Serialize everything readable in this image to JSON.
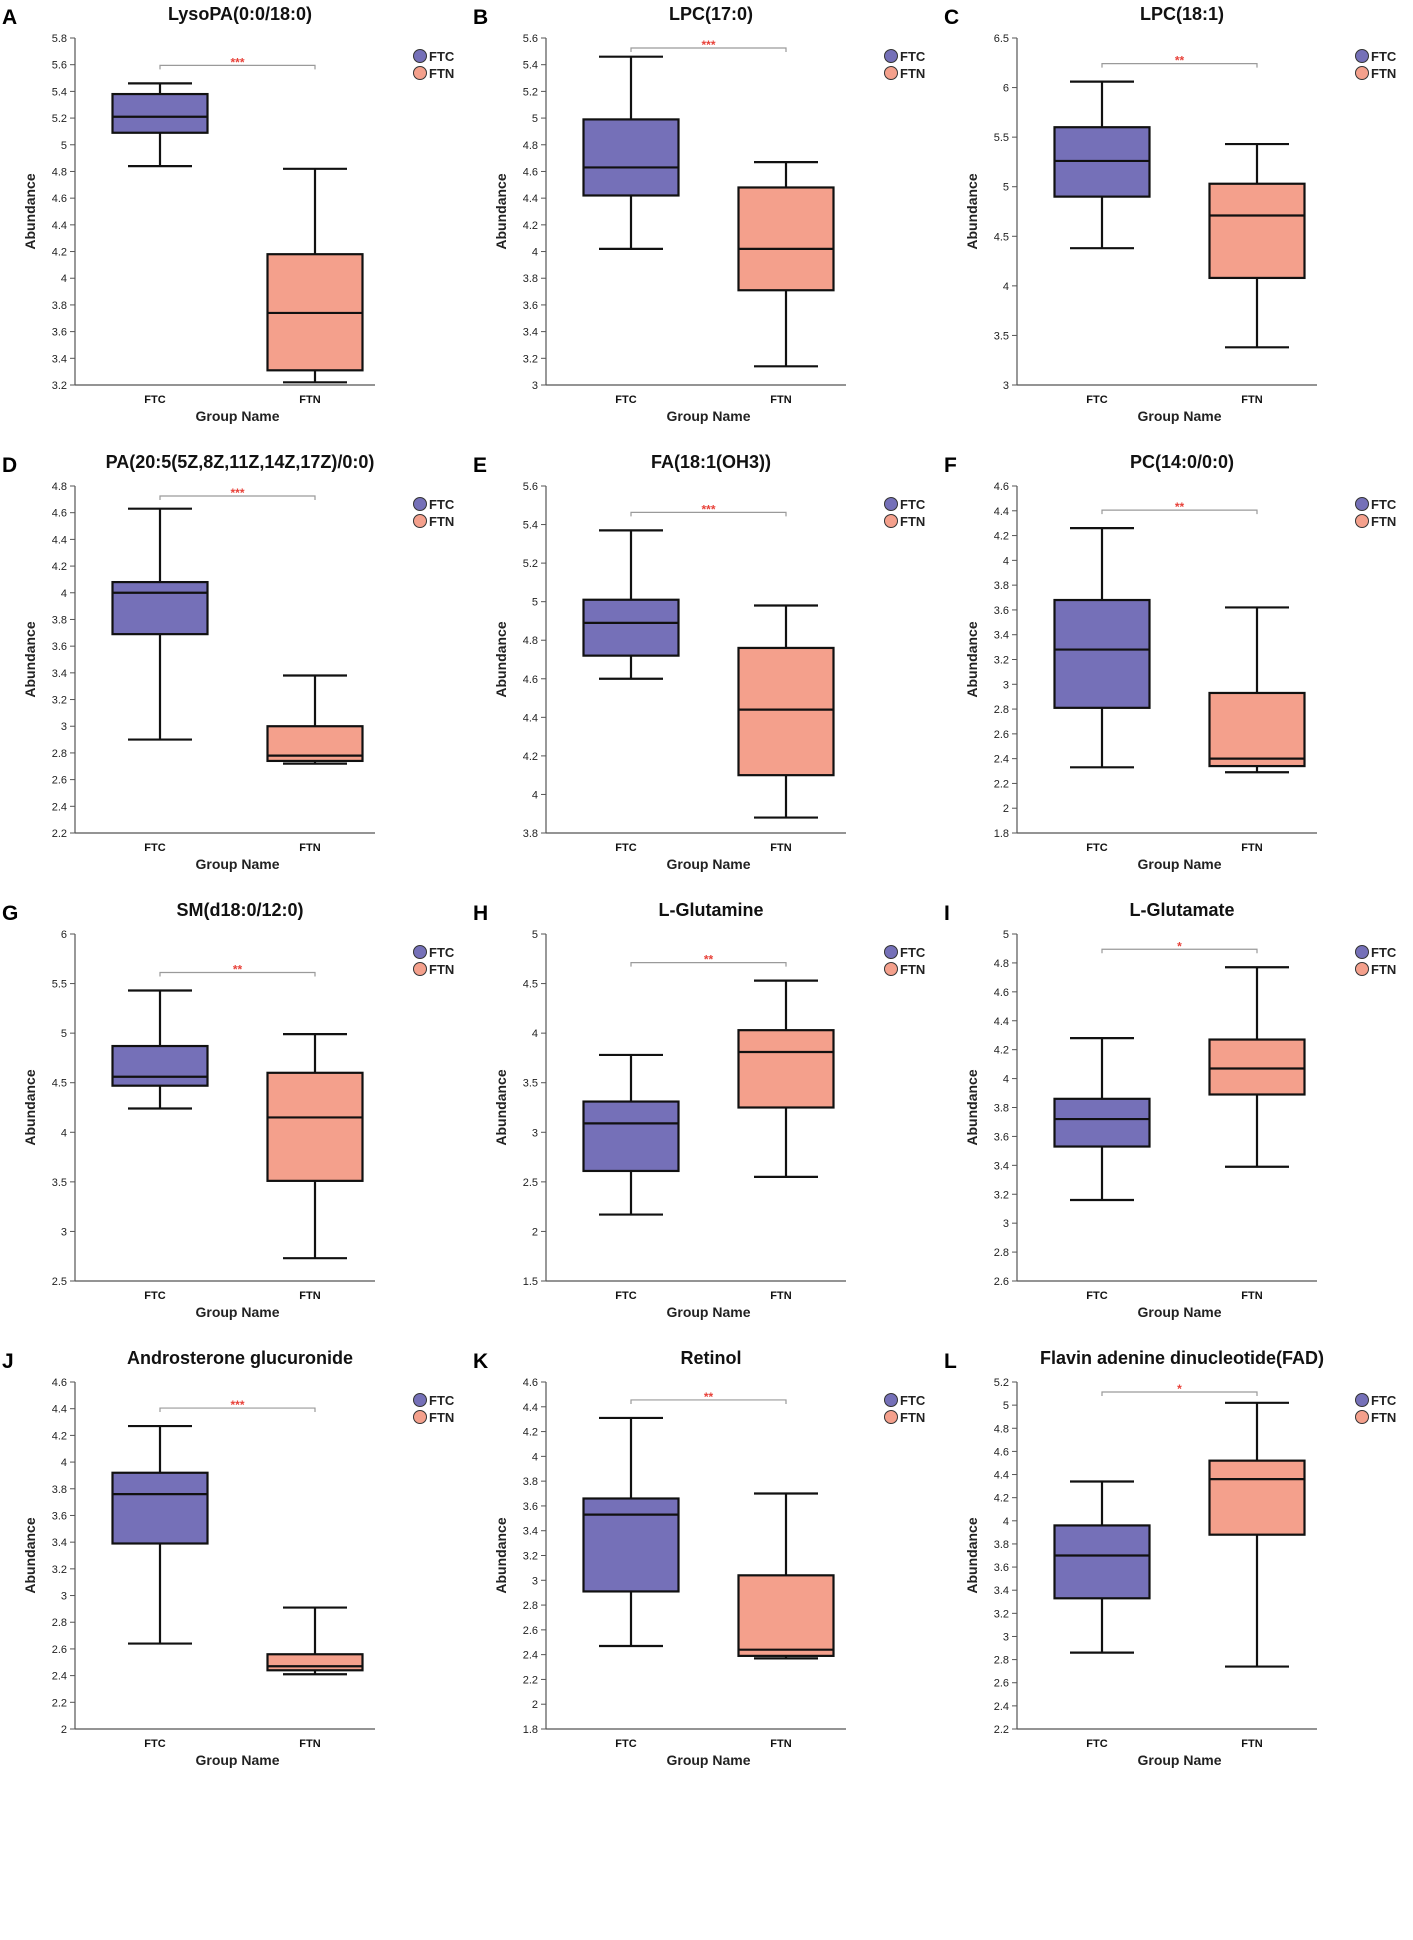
{
  "chart_data": [
    {
      "panel": "A",
      "type": "box",
      "title": "LysoPA(0:0/18:0)",
      "xlabel": "Group Name",
      "ylabel": "Abundance",
      "ylim": [
        3.2,
        5.8
      ],
      "yticks": [
        "3.2",
        "3.4",
        "3.6",
        "3.8",
        "4",
        "4.2",
        "4.4",
        "4.6",
        "4.8",
        "5",
        "5.2",
        "5.4",
        "5.6",
        "5.8"
      ],
      "categories": [
        "FTC",
        "FTN"
      ],
      "boxes": [
        {
          "group": "FTC",
          "min": 4.84,
          "q1": 5.09,
          "median": 5.21,
          "q3": 5.38,
          "max": 5.46
        },
        {
          "group": "FTN",
          "min": 3.22,
          "q1": 3.31,
          "median": 3.74,
          "q3": 4.18,
          "max": 4.82
        }
      ],
      "significance": "***"
    },
    {
      "panel": "B",
      "type": "box",
      "title": "LPC(17:0)",
      "xlabel": "Group Name",
      "ylabel": "Abundance",
      "ylim": [
        3,
        5.6
      ],
      "yticks": [
        "3",
        "3.2",
        "3.4",
        "3.6",
        "3.8",
        "4",
        "4.2",
        "4.4",
        "4.6",
        "4.8",
        "5",
        "5.2",
        "5.4",
        "5.6"
      ],
      "categories": [
        "FTC",
        "FTN"
      ],
      "boxes": [
        {
          "group": "FTC",
          "min": 4.02,
          "q1": 4.42,
          "median": 4.63,
          "q3": 4.99,
          "max": 5.46
        },
        {
          "group": "FTN",
          "min": 3.14,
          "q1": 3.71,
          "median": 4.02,
          "q3": 4.48,
          "max": 4.67
        }
      ],
      "significance": "***"
    },
    {
      "panel": "C",
      "type": "box",
      "title": "LPC(18:1)",
      "xlabel": "Group Name",
      "ylabel": "Abundance",
      "ylim": [
        3,
        6.5
      ],
      "yticks": [
        "3",
        "3.5",
        "4",
        "4.5",
        "5",
        "5.5",
        "6",
        "6.5"
      ],
      "categories": [
        "FTC",
        "FTN"
      ],
      "boxes": [
        {
          "group": "FTC",
          "min": 4.38,
          "q1": 4.9,
          "median": 5.26,
          "q3": 5.6,
          "max": 6.06
        },
        {
          "group": "FTN",
          "min": 3.38,
          "q1": 4.08,
          "median": 4.71,
          "q3": 5.03,
          "max": 5.43
        }
      ],
      "significance": "**"
    },
    {
      "panel": "D",
      "type": "box",
      "title": "PA(20:5(5Z,8Z,11Z,14Z,17Z)/0:0)",
      "xlabel": "Group Name",
      "ylabel": "Abundance",
      "ylim": [
        2.2,
        4.8
      ],
      "yticks": [
        "2.2",
        "2.4",
        "2.6",
        "2.8",
        "3",
        "3.2",
        "3.4",
        "3.6",
        "3.8",
        "4",
        "4.2",
        "4.4",
        "4.6",
        "4.8"
      ],
      "categories": [
        "FTC",
        "FTN"
      ],
      "boxes": [
        {
          "group": "FTC",
          "min": 2.9,
          "q1": 3.69,
          "median": 4.0,
          "q3": 4.08,
          "max": 4.63
        },
        {
          "group": "FTN",
          "min": 2.72,
          "q1": 2.74,
          "median": 2.78,
          "q3": 3.0,
          "max": 3.38
        }
      ],
      "significance": "***"
    },
    {
      "panel": "E",
      "type": "box",
      "title": "FA(18:1(OH3))",
      "xlabel": "Group Name",
      "ylabel": "Abundance",
      "ylim": [
        3.8,
        5.6
      ],
      "yticks": [
        "3.8",
        "4",
        "4.2",
        "4.4",
        "4.6",
        "4.8",
        "5",
        "5.2",
        "5.4",
        "5.6"
      ],
      "categories": [
        "FTC",
        "FTN"
      ],
      "boxes": [
        {
          "group": "FTC",
          "min": 4.6,
          "q1": 4.72,
          "median": 4.89,
          "q3": 5.01,
          "max": 5.37
        },
        {
          "group": "FTN",
          "min": 3.88,
          "q1": 4.1,
          "median": 4.44,
          "q3": 4.76,
          "max": 4.98
        }
      ],
      "significance": "***"
    },
    {
      "panel": "F",
      "type": "box",
      "title": "PC(14:0/0:0)",
      "xlabel": "Group Name",
      "ylabel": "Abundance",
      "ylim": [
        1.8,
        4.6
      ],
      "yticks": [
        "1.8",
        "2",
        "2.2",
        "2.4",
        "2.6",
        "2.8",
        "3",
        "3.2",
        "3.4",
        "3.6",
        "3.8",
        "4",
        "4.2",
        "4.4",
        "4.6"
      ],
      "categories": [
        "FTC",
        "FTN"
      ],
      "boxes": [
        {
          "group": "FTC",
          "min": 2.33,
          "q1": 2.81,
          "median": 3.28,
          "q3": 3.68,
          "max": 4.26
        },
        {
          "group": "FTN",
          "min": 2.29,
          "q1": 2.34,
          "median": 2.4,
          "q3": 2.93,
          "max": 3.62
        }
      ],
      "significance": "**"
    },
    {
      "panel": "G",
      "type": "box",
      "title": "SM(d18:0/12:0)",
      "xlabel": "Group Name",
      "ylabel": "Abundance",
      "ylim": [
        2.5,
        6
      ],
      "yticks": [
        "2.5",
        "3",
        "3.5",
        "4",
        "4.5",
        "5",
        "5.5",
        "6"
      ],
      "categories": [
        "FTC",
        "FTN"
      ],
      "boxes": [
        {
          "group": "FTC",
          "min": 4.24,
          "q1": 4.47,
          "median": 4.56,
          "q3": 4.87,
          "max": 5.43
        },
        {
          "group": "FTN",
          "min": 2.73,
          "q1": 3.51,
          "median": 4.15,
          "q3": 4.6,
          "max": 4.99
        }
      ],
      "significance": "**"
    },
    {
      "panel": "H",
      "type": "box",
      "title": "L-Glutamine",
      "xlabel": "Group Name",
      "ylabel": "Abundance",
      "ylim": [
        1.5,
        5
      ],
      "yticks": [
        "1.5",
        "2",
        "2.5",
        "3",
        "3.5",
        "4",
        "4.5",
        "5"
      ],
      "categories": [
        "FTC",
        "FTN"
      ],
      "boxes": [
        {
          "group": "FTC",
          "min": 2.17,
          "q1": 2.61,
          "median": 3.09,
          "q3": 3.31,
          "max": 3.78
        },
        {
          "group": "FTN",
          "min": 2.55,
          "q1": 3.25,
          "median": 3.81,
          "q3": 4.03,
          "max": 4.53
        }
      ],
      "significance": "**"
    },
    {
      "panel": "I",
      "type": "box",
      "title": "L-Glutamate",
      "xlabel": "Group Name",
      "ylabel": "Abundance",
      "ylim": [
        2.6,
        5
      ],
      "yticks": [
        "2.6",
        "2.8",
        "3",
        "3.2",
        "3.4",
        "3.6",
        "3.8",
        "4",
        "4.2",
        "4.4",
        "4.6",
        "4.8",
        "5"
      ],
      "categories": [
        "FTC",
        "FTN"
      ],
      "boxes": [
        {
          "group": "FTC",
          "min": 3.16,
          "q1": 3.53,
          "median": 3.72,
          "q3": 3.86,
          "max": 4.28
        },
        {
          "group": "FTN",
          "min": 3.39,
          "q1": 3.89,
          "median": 4.07,
          "q3": 4.27,
          "max": 4.77
        }
      ],
      "significance": "*"
    },
    {
      "panel": "J",
      "type": "box",
      "title": "Androsterone glucuronide",
      "xlabel": "Group Name",
      "ylabel": "Abundance",
      "ylim": [
        2,
        4.6
      ],
      "yticks": [
        "2",
        "2.2",
        "2.4",
        "2.6",
        "2.8",
        "3",
        "3.2",
        "3.4",
        "3.6",
        "3.8",
        "4",
        "4.2",
        "4.4",
        "4.6"
      ],
      "categories": [
        "FTC",
        "FTN"
      ],
      "boxes": [
        {
          "group": "FTC",
          "min": 2.64,
          "q1": 3.39,
          "median": 3.76,
          "q3": 3.92,
          "max": 4.27
        },
        {
          "group": "FTN",
          "min": 2.41,
          "q1": 2.44,
          "median": 2.47,
          "q3": 2.56,
          "max": 2.91
        }
      ],
      "significance": "***"
    },
    {
      "panel": "K",
      "type": "box",
      "title": "Retinol",
      "xlabel": "Group Name",
      "ylabel": "Abundance",
      "ylim": [
        1.8,
        4.6
      ],
      "yticks": [
        "1.8",
        "2",
        "2.2",
        "2.4",
        "2.6",
        "2.8",
        "3",
        "3.2",
        "3.4",
        "3.6",
        "3.8",
        "4",
        "4.2",
        "4.4",
        "4.6"
      ],
      "categories": [
        "FTC",
        "FTN"
      ],
      "boxes": [
        {
          "group": "FTC",
          "min": 2.47,
          "q1": 2.91,
          "median": 3.53,
          "q3": 3.66,
          "max": 4.31
        },
        {
          "group": "FTN",
          "min": 2.37,
          "q1": 2.39,
          "median": 2.44,
          "q3": 3.04,
          "max": 3.7
        }
      ],
      "significance": "**"
    },
    {
      "panel": "L",
      "type": "box",
      "title": "Flavin adenine dinucleotide(FAD)",
      "xlabel": "Group Name",
      "ylabel": "Abundance",
      "ylim": [
        2.2,
        5.2
      ],
      "yticks": [
        "2.2",
        "2.4",
        "2.6",
        "2.8",
        "3",
        "3.2",
        "3.4",
        "3.6",
        "3.8",
        "4",
        "4.2",
        "4.4",
        "4.6",
        "4.8",
        "5",
        "5.2"
      ],
      "categories": [
        "FTC",
        "FTN"
      ],
      "boxes": [
        {
          "group": "FTC",
          "min": 2.86,
          "q1": 3.33,
          "median": 3.7,
          "q3": 3.96,
          "max": 4.34
        },
        {
          "group": "FTN",
          "min": 2.74,
          "q1": 3.88,
          "median": 4.36,
          "q3": 4.52,
          "max": 5.02
        }
      ],
      "significance": "*"
    }
  ],
  "legend": [
    {
      "label": "FTC",
      "color": "#7570b8"
    },
    {
      "label": "FTN",
      "color": "#f4a08c"
    }
  ],
  "colors": {
    "box_outline": "#111111",
    "bracket": "#9a9a9a",
    "significance": "#e8423a"
  }
}
